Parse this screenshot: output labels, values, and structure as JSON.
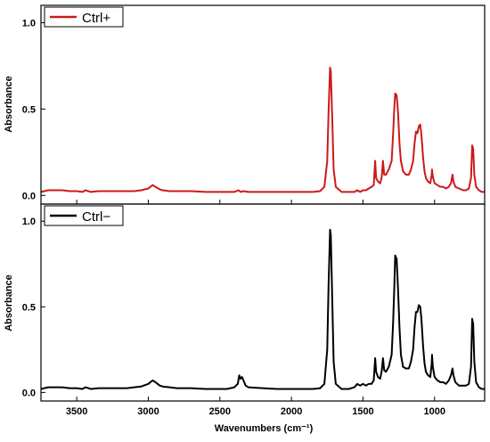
{
  "chart_data": {
    "type": "line",
    "xlabel": "Wavenumbers (cm⁻¹)",
    "xlim": [
      3750,
      650
    ],
    "x_ticks": [
      3500,
      3000,
      2500,
      2000,
      1500,
      1000
    ],
    "x_tick_labels": [
      "3500",
      "3000",
      "2500",
      "2000",
      "1500",
      "1000"
    ],
    "panels": [
      {
        "ylabel": "Absorbance",
        "ylim": [
          -0.05,
          1.1
        ],
        "y_ticks": [
          0.0,
          0.5,
          1.0
        ],
        "y_tick_labels": [
          "0.0",
          "0.5",
          "1.0"
        ],
        "legend_position": "top-left",
        "series": [
          {
            "name": "Ctrl+",
            "color": "#cc1a1a",
            "points": [
              [
                3750,
                0.02
              ],
              [
                3700,
                0.03
              ],
              [
                3650,
                0.03
              ],
              [
                3600,
                0.03
              ],
              [
                3550,
                0.025
              ],
              [
                3500,
                0.025
              ],
              [
                3460,
                0.02
              ],
              [
                3440,
                0.03
              ],
              [
                3400,
                0.02
              ],
              [
                3350,
                0.025
              ],
              [
                3300,
                0.025
              ],
              [
                3250,
                0.025
              ],
              [
                3200,
                0.025
              ],
              [
                3150,
                0.025
              ],
              [
                3100,
                0.025
              ],
              [
                3050,
                0.03
              ],
              [
                3000,
                0.04
              ],
              [
                2970,
                0.06
              ],
              [
                2950,
                0.05
              ],
              [
                2920,
                0.035
              ],
              [
                2900,
                0.03
              ],
              [
                2850,
                0.025
              ],
              [
                2800,
                0.025
              ],
              [
                2700,
                0.025
              ],
              [
                2600,
                0.02
              ],
              [
                2500,
                0.02
              ],
              [
                2450,
                0.02
              ],
              [
                2400,
                0.02
              ],
              [
                2370,
                0.03
              ],
              [
                2355,
                0.02
              ],
              [
                2340,
                0.025
              ],
              [
                2300,
                0.02
              ],
              [
                2200,
                0.02
              ],
              [
                2100,
                0.02
              ],
              [
                2000,
                0.02
              ],
              [
                1900,
                0.02
              ],
              [
                1850,
                0.02
              ],
              [
                1800,
                0.025
              ],
              [
                1770,
                0.05
              ],
              [
                1750,
                0.2
              ],
              [
                1740,
                0.5
              ],
              [
                1730,
                0.74
              ],
              [
                1725,
                0.72
              ],
              [
                1715,
                0.45
              ],
              [
                1705,
                0.15
              ],
              [
                1690,
                0.05
              ],
              [
                1650,
                0.02
              ],
              [
                1600,
                0.02
              ],
              [
                1560,
                0.02
              ],
              [
                1540,
                0.03
              ],
              [
                1520,
                0.02
              ],
              [
                1500,
                0.03
              ],
              [
                1480,
                0.03
              ],
              [
                1460,
                0.04
              ],
              [
                1440,
                0.05
              ],
              [
                1425,
                0.06
              ],
              [
                1415,
                0.2
              ],
              [
                1408,
                0.1
              ],
              [
                1395,
                0.08
              ],
              [
                1380,
                0.07
              ],
              [
                1370,
                0.1
              ],
              [
                1360,
                0.2
              ],
              [
                1352,
                0.12
              ],
              [
                1340,
                0.12
              ],
              [
                1320,
                0.15
              ],
              [
                1300,
                0.2
              ],
              [
                1290,
                0.35
              ],
              [
                1282,
                0.5
              ],
              [
                1275,
                0.59
              ],
              [
                1265,
                0.58
              ],
              [
                1255,
                0.48
              ],
              [
                1245,
                0.3
              ],
              [
                1235,
                0.2
              ],
              [
                1220,
                0.14
              ],
              [
                1200,
                0.12
              ],
              [
                1180,
                0.12
              ],
              [
                1165,
                0.15
              ],
              [
                1150,
                0.2
              ],
              [
                1140,
                0.3
              ],
              [
                1130,
                0.37
              ],
              [
                1120,
                0.36
              ],
              [
                1110,
                0.4
              ],
              [
                1100,
                0.41
              ],
              [
                1092,
                0.35
              ],
              [
                1080,
                0.22
              ],
              [
                1070,
                0.14
              ],
              [
                1060,
                0.1
              ],
              [
                1045,
                0.08
              ],
              [
                1030,
                0.07
              ],
              [
                1020,
                0.12
              ],
              [
                1018,
                0.15
              ],
              [
                1012,
                0.11
              ],
              [
                1000,
                0.07
              ],
              [
                980,
                0.06
              ],
              [
                960,
                0.05
              ],
              [
                940,
                0.05
              ],
              [
                920,
                0.04
              ],
              [
                900,
                0.05
              ],
              [
                885,
                0.07
              ],
              [
                875,
                0.12
              ],
              [
                868,
                0.08
              ],
              [
                855,
                0.05
              ],
              [
                830,
                0.04
              ],
              [
                800,
                0.03
              ],
              [
                780,
                0.03
              ],
              [
                760,
                0.04
              ],
              [
                745,
                0.1
              ],
              [
                737,
                0.29
              ],
              [
                730,
                0.27
              ],
              [
                722,
                0.12
              ],
              [
                710,
                0.05
              ],
              [
                690,
                0.03
              ],
              [
                670,
                0.02
              ],
              [
                650,
                0.02
              ]
            ]
          }
        ]
      },
      {
        "ylabel": "Absorbance",
        "ylim": [
          -0.05,
          1.1
        ],
        "y_ticks": [
          0.0,
          0.5,
          1.0
        ],
        "y_tick_labels": [
          "0.0",
          "0.5",
          "1.0"
        ],
        "legend_position": "top-left",
        "series": [
          {
            "name": "Ctrl−",
            "color": "#000000",
            "points": [
              [
                3750,
                0.02
              ],
              [
                3700,
                0.03
              ],
              [
                3650,
                0.03
              ],
              [
                3600,
                0.03
              ],
              [
                3550,
                0.025
              ],
              [
                3500,
                0.025
              ],
              [
                3460,
                0.02
              ],
              [
                3440,
                0.03
              ],
              [
                3400,
                0.02
              ],
              [
                3350,
                0.025
              ],
              [
                3300,
                0.025
              ],
              [
                3250,
                0.025
              ],
              [
                3200,
                0.025
              ],
              [
                3150,
                0.025
              ],
              [
                3100,
                0.03
              ],
              [
                3050,
                0.035
              ],
              [
                3000,
                0.05
              ],
              [
                2970,
                0.07
              ],
              [
                2950,
                0.06
              ],
              [
                2920,
                0.04
              ],
              [
                2900,
                0.035
              ],
              [
                2850,
                0.03
              ],
              [
                2800,
                0.025
              ],
              [
                2700,
                0.025
              ],
              [
                2600,
                0.02
              ],
              [
                2500,
                0.02
              ],
              [
                2450,
                0.02
              ],
              [
                2400,
                0.03
              ],
              [
                2375,
                0.05
              ],
              [
                2365,
                0.1
              ],
              [
                2355,
                0.08
              ],
              [
                2345,
                0.09
              ],
              [
                2335,
                0.07
              ],
              [
                2320,
                0.04
              ],
              [
                2300,
                0.03
              ],
              [
                2200,
                0.025
              ],
              [
                2100,
                0.02
              ],
              [
                2000,
                0.02
              ],
              [
                1900,
                0.02
              ],
              [
                1850,
                0.02
              ],
              [
                1800,
                0.025
              ],
              [
                1770,
                0.05
              ],
              [
                1750,
                0.25
              ],
              [
                1740,
                0.65
              ],
              [
                1730,
                0.95
              ],
              [
                1725,
                0.92
              ],
              [
                1715,
                0.55
              ],
              [
                1705,
                0.18
              ],
              [
                1690,
                0.05
              ],
              [
                1650,
                0.02
              ],
              [
                1600,
                0.02
              ],
              [
                1560,
                0.03
              ],
              [
                1540,
                0.05
              ],
              [
                1520,
                0.04
              ],
              [
                1500,
                0.05
              ],
              [
                1480,
                0.04
              ],
              [
                1460,
                0.05
              ],
              [
                1440,
                0.05
              ],
              [
                1425,
                0.07
              ],
              [
                1415,
                0.2
              ],
              [
                1408,
                0.12
              ],
              [
                1395,
                0.09
              ],
              [
                1380,
                0.08
              ],
              [
                1370,
                0.12
              ],
              [
                1360,
                0.2
              ],
              [
                1352,
                0.13
              ],
              [
                1340,
                0.12
              ],
              [
                1320,
                0.15
              ],
              [
                1300,
                0.22
              ],
              [
                1290,
                0.4
              ],
              [
                1282,
                0.6
              ],
              [
                1275,
                0.8
              ],
              [
                1265,
                0.78
              ],
              [
                1255,
                0.6
              ],
              [
                1245,
                0.38
              ],
              [
                1235,
                0.22
              ],
              [
                1220,
                0.15
              ],
              [
                1200,
                0.14
              ],
              [
                1180,
                0.14
              ],
              [
                1165,
                0.18
              ],
              [
                1150,
                0.25
              ],
              [
                1140,
                0.38
              ],
              [
                1130,
                0.47
              ],
              [
                1120,
                0.47
              ],
              [
                1110,
                0.51
              ],
              [
                1100,
                0.5
              ],
              [
                1092,
                0.43
              ],
              [
                1080,
                0.27
              ],
              [
                1070,
                0.17
              ],
              [
                1060,
                0.12
              ],
              [
                1045,
                0.1
              ],
              [
                1030,
                0.09
              ],
              [
                1020,
                0.17
              ],
              [
                1018,
                0.22
              ],
              [
                1012,
                0.15
              ],
              [
                1000,
                0.09
              ],
              [
                980,
                0.07
              ],
              [
                960,
                0.06
              ],
              [
                940,
                0.06
              ],
              [
                920,
                0.05
              ],
              [
                900,
                0.07
              ],
              [
                885,
                0.1
              ],
              [
                875,
                0.14
              ],
              [
                868,
                0.1
              ],
              [
                855,
                0.06
              ],
              [
                830,
                0.04
              ],
              [
                800,
                0.04
              ],
              [
                780,
                0.04
              ],
              [
                760,
                0.05
              ],
              [
                745,
                0.15
              ],
              [
                737,
                0.43
              ],
              [
                730,
                0.4
              ],
              [
                722,
                0.18
              ],
              [
                710,
                0.06
              ],
              [
                690,
                0.03
              ],
              [
                670,
                0.02
              ],
              [
                650,
                0.02
              ]
            ]
          }
        ]
      }
    ]
  }
}
